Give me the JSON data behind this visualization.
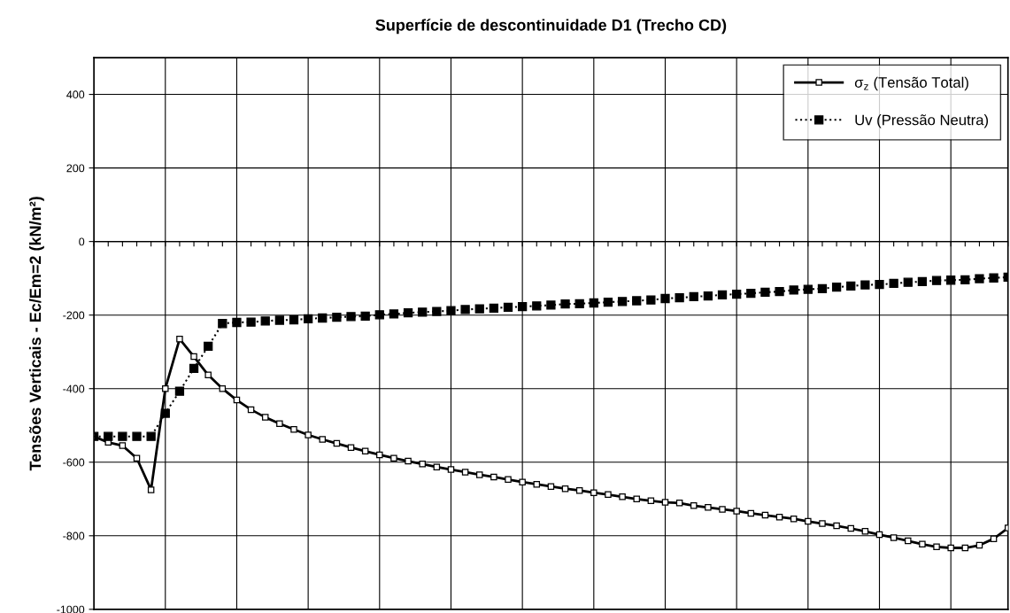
{
  "chart_data": {
    "type": "line",
    "title": "Superfície de descontinuidade D1 (Trecho CD)",
    "ylabel": "Tensões Verticais - Ec/Em=2 (kN/m²)",
    "categories": [
      null,
      null,
      null,
      null,
      null,
      null,
      null,
      null,
      null,
      null,
      null,
      null,
      null,
      null,
      null,
      null,
      null,
      null,
      null,
      null,
      null,
      null,
      null,
      null,
      null,
      null,
      null,
      null,
      null,
      null,
      null,
      null,
      null,
      null,
      null,
      null,
      null,
      null,
      null,
      null,
      null,
      null,
      null,
      null,
      null,
      null,
      null,
      null,
      null,
      null,
      null,
      null,
      null,
      null,
      null,
      null,
      null,
      null,
      null,
      null,
      null,
      null,
      null,
      null,
      null
    ],
    "series": [
      {
        "name": "σ$_{z}$ (Tensão Total)",
        "color": "#000000",
        "line_style": "solid",
        "marker": "square",
        "values": [
          -530,
          -546,
          -555,
          -589,
          -675,
          -400,
          -265,
          -313,
          -363,
          -400,
          -431,
          -457,
          -478,
          -495,
          -511,
          -526,
          -538,
          -549,
          -560,
          -570,
          -580,
          -589,
          -597,
          -605,
          -613,
          -620,
          -627,
          -634,
          -640,
          -647,
          -654,
          -660,
          -666,
          -672,
          -677,
          -683,
          -688,
          -694,
          -700,
          -705,
          -709,
          -711,
          -718,
          -723,
          -728,
          -733,
          -739,
          -744,
          -749,
          -754,
          -761,
          -767,
          -773,
          -780,
          -788,
          -797,
          -805,
          -814,
          -823,
          -830,
          -833,
          -833,
          -826,
          -808,
          -779
        ]
      },
      {
        "name": "Uv (Pressão Neutra)",
        "color": "#000000",
        "line_style": "dotted",
        "marker": "square",
        "values": [
          -530,
          -530,
          -530,
          -530,
          -530,
          -467,
          -407,
          -345,
          -285,
          -223,
          -220,
          -219,
          -216,
          -214,
          -213,
          -210,
          -208,
          -206,
          -204,
          -203,
          -199,
          -197,
          -194,
          -192,
          -190,
          -188,
          -185,
          -183,
          -181,
          -179,
          -177,
          -175,
          -173,
          -170,
          -169,
          -167,
          -165,
          -163,
          -161,
          -159,
          -155,
          -153,
          -150,
          -148,
          -145,
          -143,
          -141,
          -138,
          -136,
          -132,
          -130,
          -128,
          -124,
          -121,
          -118,
          -117,
          -114,
          -111,
          -109,
          -106,
          -105,
          -104,
          -101,
          -99,
          -97
        ]
      }
    ],
    "ylim": [
      -1000,
      500
    ],
    "yticks": [
      -1000,
      -800,
      -600,
      -400,
      -200,
      0,
      200,
      400
    ],
    "grid": true,
    "legend": "top right",
    "tick_labels": "y"
  }
}
